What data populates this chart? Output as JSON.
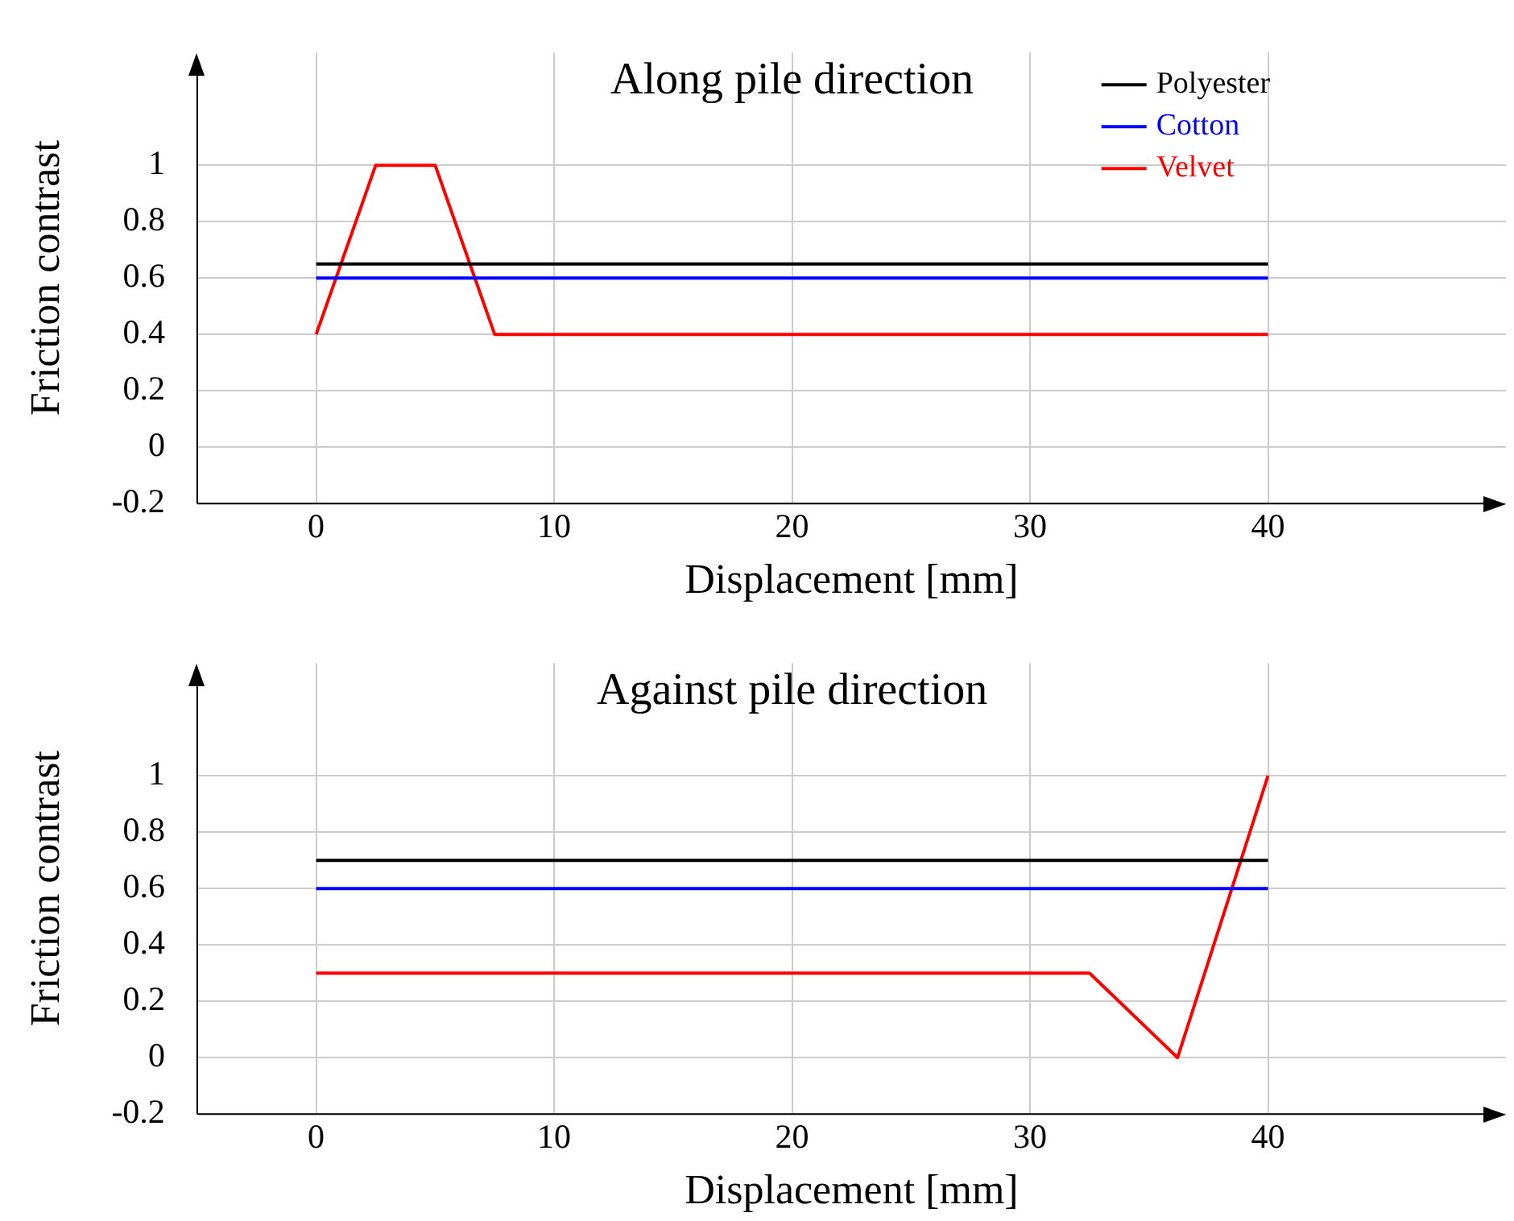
{
  "chart_data": [
    {
      "type": "line",
      "title": "Along pile direction",
      "xlabel": "Displacement [mm]",
      "ylabel": "Friction contrast",
      "xlim": [
        -5,
        50
      ],
      "xticks": [
        0,
        10,
        20,
        30,
        40
      ],
      "ylim": [
        -0.2,
        1.4
      ],
      "yticks": [
        -0.2,
        0,
        0.2,
        0.4,
        0.6,
        0.8,
        1
      ],
      "grid": true,
      "legend": "top right",
      "marker": "none",
      "series": [
        {
          "name": "Polyester",
          "color": "#000000",
          "x": [
            0,
            40
          ],
          "values": [
            0.65,
            0.65
          ]
        },
        {
          "name": "Cotton",
          "color": "#0000ff",
          "x": [
            0,
            40
          ],
          "values": [
            0.6,
            0.6
          ]
        },
        {
          "name": "Velvet",
          "color": "#ff0000",
          "x": [
            0,
            2.5,
            5,
            7.5,
            40
          ],
          "values": [
            0.4,
            1,
            1,
            0.4,
            0.4
          ]
        }
      ]
    },
    {
      "type": "line",
      "title": "Against pile direction",
      "xlabel": "Displacement [mm]",
      "ylabel": "Friction contrast",
      "xlim": [
        -5,
        50
      ],
      "xticks": [
        0,
        10,
        20,
        30,
        40
      ],
      "ylim": [
        -0.2,
        1.4
      ],
      "yticks": [
        -0.2,
        0,
        0.2,
        0.4,
        0.6,
        0.8,
        1
      ],
      "grid": true,
      "marker": "none",
      "series": [
        {
          "color": "#000000",
          "x": [
            0,
            40
          ],
          "values": [
            0.7,
            0.7
          ]
        },
        {
          "color": "#0000ff",
          "x": [
            0,
            40
          ],
          "values": [
            0.6,
            0.6
          ]
        },
        {
          "color": "#ff0000",
          "x": [
            0,
            32.5,
            36.2,
            40
          ],
          "values": [
            0.3,
            0.3,
            0,
            1
          ]
        }
      ]
    }
  ]
}
